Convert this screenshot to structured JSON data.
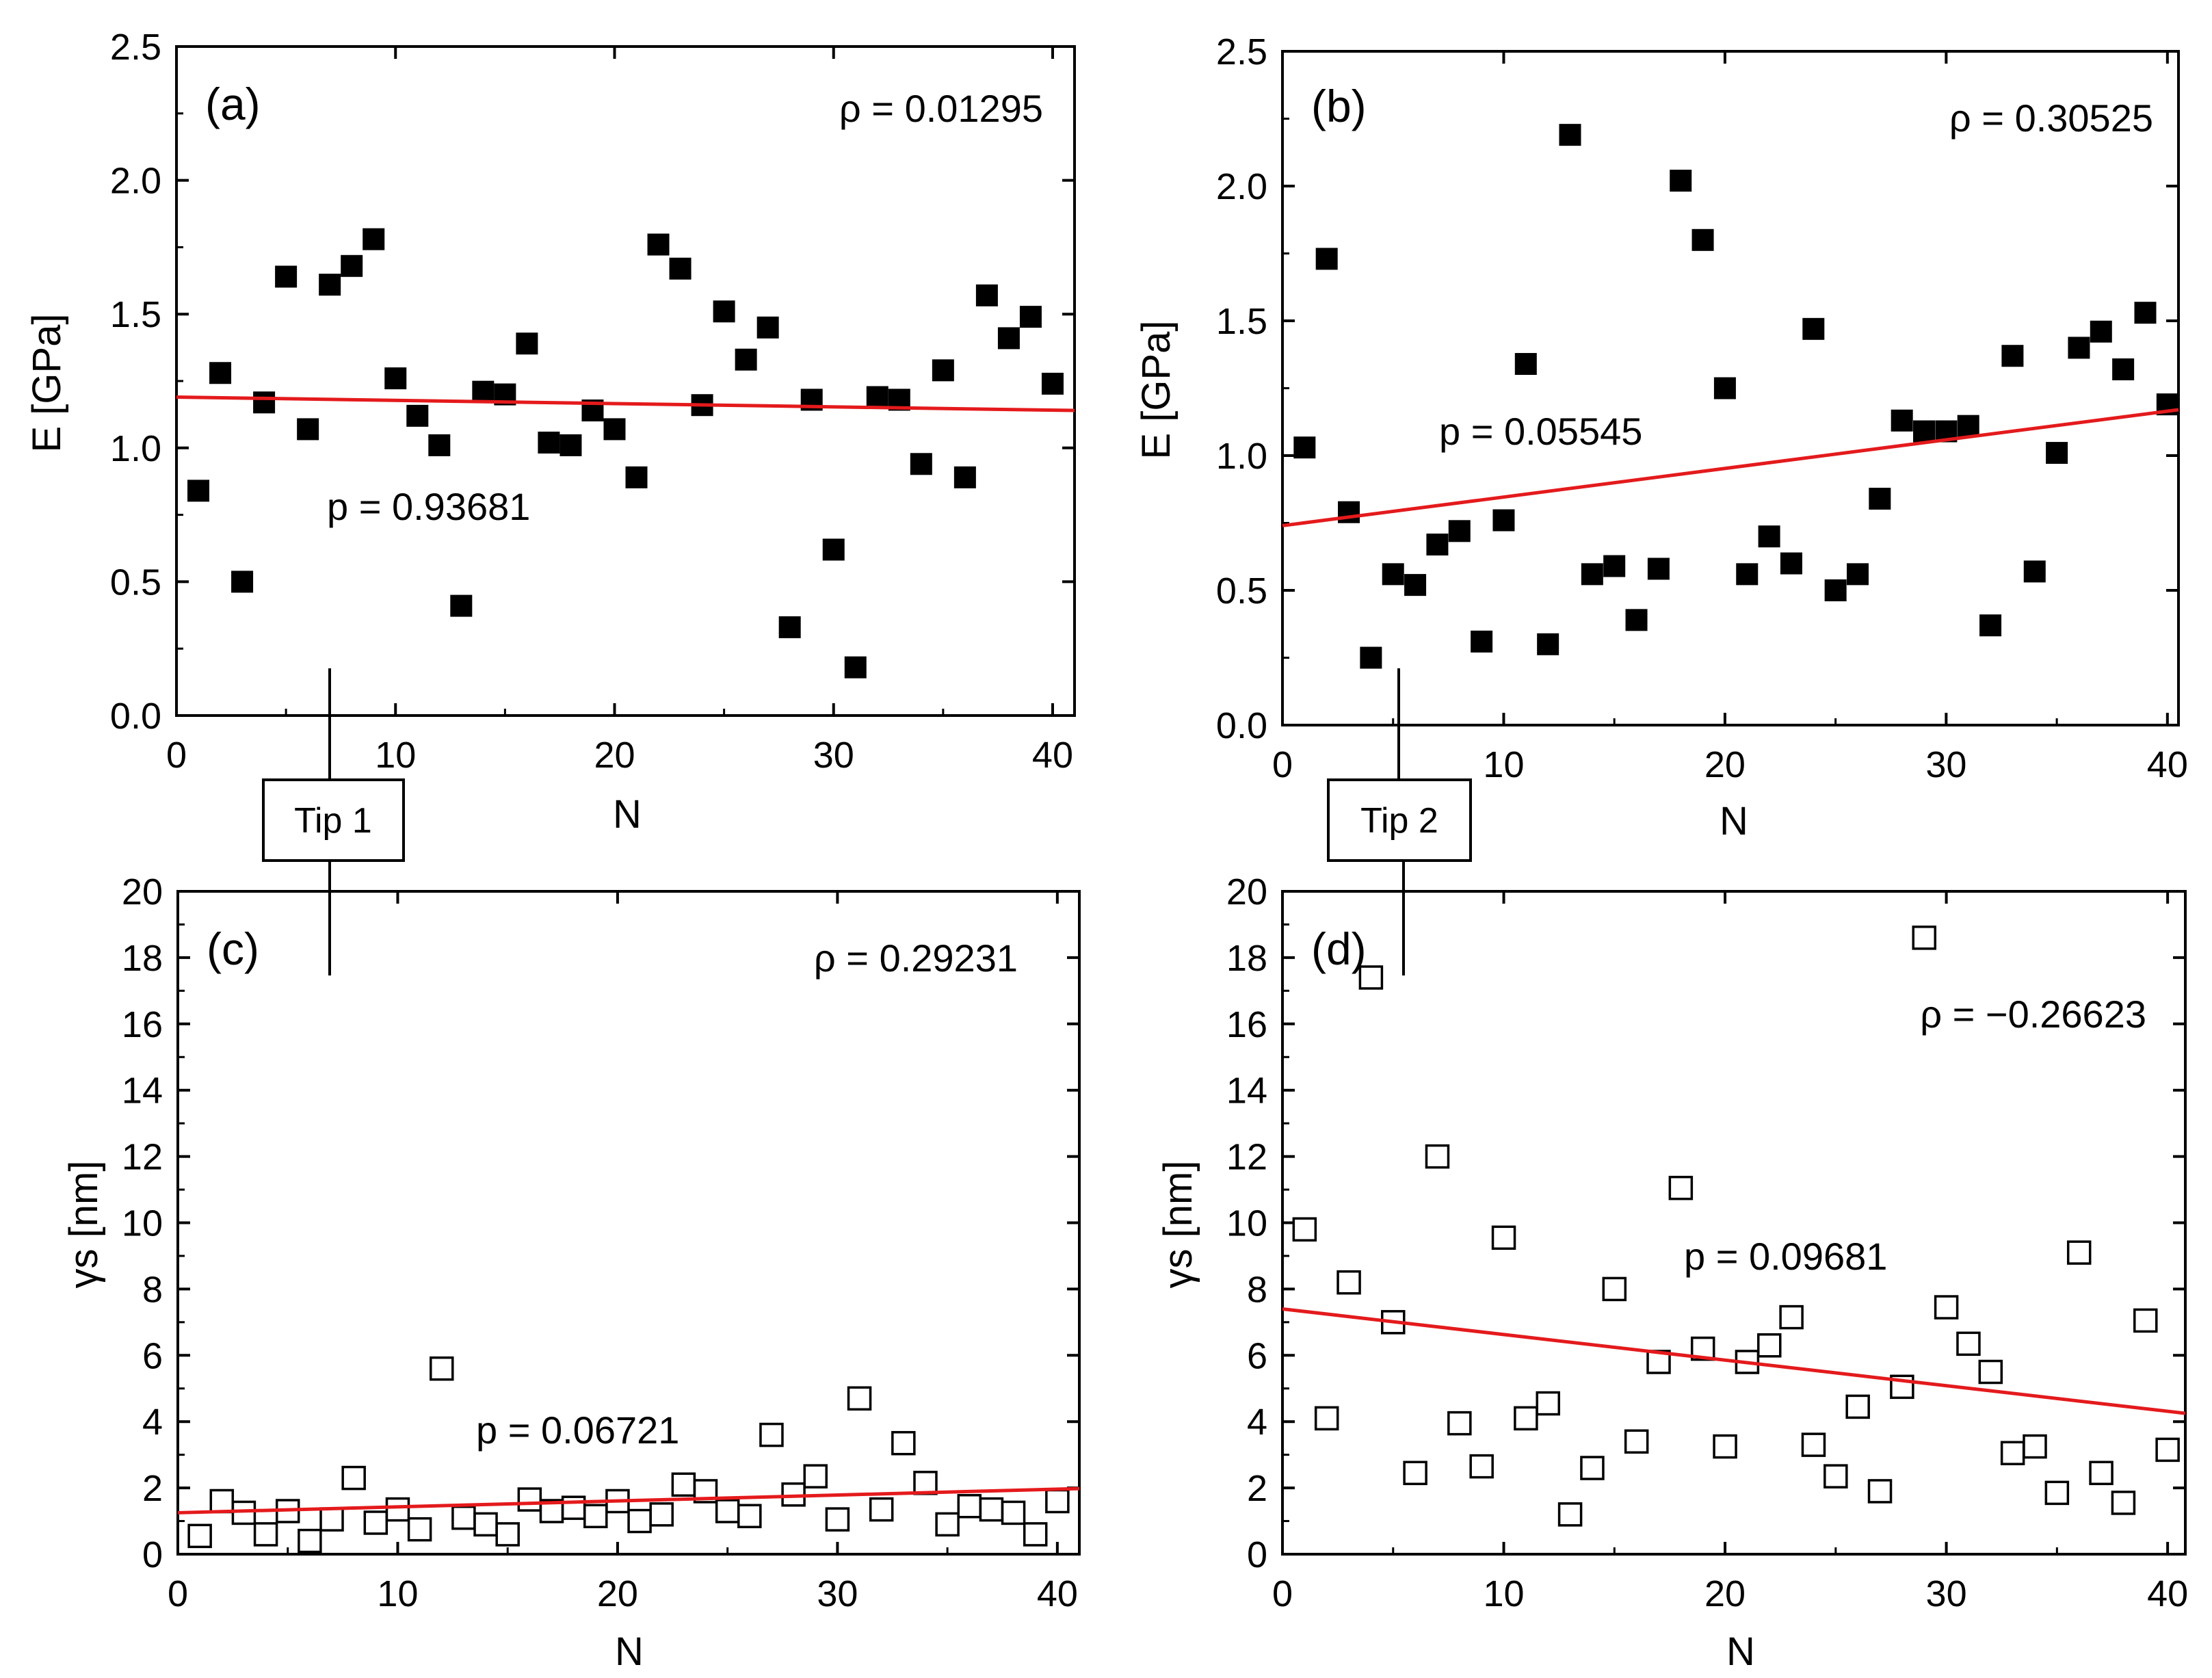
{
  "figure": {
    "tips": [
      {
        "label": "Tip 1"
      },
      {
        "label": "Tip 2"
      }
    ]
  },
  "chart_data": [
    {
      "id": "a",
      "panel_label": "(a)",
      "type": "scatter",
      "xlabel": "N",
      "ylabel": "E [GPa]",
      "xlim": [
        0,
        41
      ],
      "ylim": [
        0,
        2.5
      ],
      "xticks": [
        0,
        10,
        20,
        30,
        40
      ],
      "yticks": [
        0.0,
        0.5,
        1.0,
        1.5,
        2.0,
        2.5
      ],
      "ytick_decimals": 1,
      "marker": "filled-square",
      "rho_label": "ρ = 0.01295",
      "p_label": "p = 0.93681",
      "fit_line": {
        "x": [
          0,
          41
        ],
        "y": [
          1.19,
          1.14
        ]
      },
      "x": [
        1,
        2,
        3,
        4,
        5,
        6,
        7,
        8,
        9,
        10,
        11,
        12,
        13,
        14,
        15,
        16,
        17,
        18,
        19,
        20,
        21,
        22,
        23,
        24,
        25,
        26,
        27,
        28,
        29,
        30,
        31,
        32,
        33,
        34,
        35,
        36,
        37,
        38,
        39,
        40
      ],
      "y": [
        0.84,
        1.28,
        0.5,
        1.17,
        1.64,
        1.07,
        1.61,
        1.68,
        1.78,
        1.26,
        1.12,
        1.01,
        0.41,
        1.21,
        1.2,
        1.39,
        1.02,
        1.01,
        1.14,
        1.07,
        0.89,
        1.76,
        1.67,
        1.16,
        1.51,
        1.33,
        1.45,
        0.33,
        1.18,
        0.62,
        0.18,
        1.19,
        1.18,
        0.94,
        1.29,
        0.89,
        1.57,
        1.41,
        1.49,
        1.24
      ]
    },
    {
      "id": "b",
      "panel_label": "(b)",
      "type": "scatter",
      "xlabel": "N",
      "ylabel": "E [GPa]",
      "xlim": [
        0,
        40.5
      ],
      "ylim": [
        0,
        2.5
      ],
      "xticks": [
        0,
        10,
        20,
        30,
        40
      ],
      "yticks": [
        0.0,
        0.5,
        1.0,
        1.5,
        2.0,
        2.5
      ],
      "ytick_decimals": 1,
      "marker": "filled-square",
      "rho_label": "ρ = 0.30525",
      "p_label": "p = 0.05545",
      "fit_line": {
        "x": [
          0,
          40.5
        ],
        "y": [
          0.74,
          1.17
        ]
      },
      "x": [
        1,
        2,
        3,
        4,
        5,
        6,
        7,
        8,
        9,
        10,
        11,
        12,
        13,
        14,
        15,
        16,
        17,
        18,
        19,
        20,
        21,
        22,
        23,
        24,
        25,
        26,
        27,
        28,
        29,
        30,
        31,
        32,
        33,
        34,
        35,
        36,
        37,
        38,
        39,
        40
      ],
      "y": [
        1.03,
        1.73,
        0.79,
        0.25,
        0.56,
        0.52,
        0.67,
        0.72,
        0.31,
        0.76,
        1.34,
        0.3,
        2.19,
        0.56,
        0.59,
        0.39,
        0.58,
        2.02,
        1.8,
        1.25,
        0.56,
        0.7,
        0.6,
        1.47,
        0.5,
        0.56,
        0.84,
        1.13,
        1.09,
        1.09,
        1.11,
        0.37,
        1.37,
        0.57,
        1.01,
        1.4,
        1.46,
        1.32,
        1.53,
        1.19
      ]
    },
    {
      "id": "c",
      "panel_label": "(c)",
      "type": "scatter",
      "xlabel": "N",
      "ylabel": "γs [nm]",
      "xlim": [
        0,
        41
      ],
      "ylim": [
        0,
        20
      ],
      "xticks": [
        0,
        10,
        20,
        30,
        40
      ],
      "yticks": [
        0,
        2,
        4,
        6,
        8,
        10,
        12,
        14,
        16,
        18,
        20
      ],
      "ytick_decimals": 0,
      "marker": "open-square",
      "rho_label": "ρ = 0.29231",
      "p_label": "p = 0.06721",
      "fit_line": {
        "x": [
          0,
          41
        ],
        "y": [
          1.25,
          1.98
        ]
      },
      "x": [
        1,
        2,
        3,
        4,
        5,
        6,
        7,
        8,
        9,
        10,
        11,
        12,
        13,
        14,
        15,
        16,
        17,
        18,
        19,
        20,
        21,
        22,
        23,
        24,
        25,
        26,
        27,
        28,
        29,
        30,
        31,
        32,
        33,
        34,
        35,
        36,
        37,
        38,
        39,
        40
      ],
      "y": [
        0.55,
        1.6,
        1.25,
        0.6,
        1.3,
        0.4,
        1.05,
        2.3,
        0.95,
        1.35,
        0.75,
        5.6,
        1.1,
        0.9,
        0.6,
        1.65,
        1.3,
        1.4,
        1.15,
        1.6,
        1.0,
        1.2,
        2.1,
        1.9,
        1.3,
        1.15,
        3.6,
        1.8,
        2.35,
        1.05,
        4.7,
        1.35,
        3.35,
        2.15,
        0.9,
        1.45,
        1.35,
        1.25,
        0.6,
        1.6
      ]
    },
    {
      "id": "d",
      "panel_label": "(d)",
      "type": "scatter",
      "xlabel": "N",
      "ylabel": "γs [nm]",
      "xlim": [
        0,
        40.8
      ],
      "ylim": [
        0,
        20
      ],
      "xticks": [
        0,
        10,
        20,
        30,
        40
      ],
      "yticks": [
        0,
        2,
        4,
        6,
        8,
        10,
        12,
        14,
        16,
        18,
        20
      ],
      "ytick_decimals": 0,
      "marker": "open-square",
      "rho_label": "ρ = −0.26623",
      "p_label": "p = 0.09681",
      "fit_line": {
        "x": [
          0,
          40.8
        ],
        "y": [
          7.4,
          4.25
        ]
      },
      "x": [
        1,
        2,
        3,
        4,
        5,
        6,
        7,
        8,
        9,
        10,
        11,
        12,
        13,
        14,
        15,
        16,
        17,
        18,
        19,
        20,
        21,
        22,
        23,
        24,
        25,
        26,
        27,
        28,
        29,
        30,
        31,
        32,
        33,
        34,
        35,
        36,
        37,
        38,
        39,
        40
      ],
      "y": [
        9.8,
        4.1,
        8.2,
        17.4,
        7.0,
        2.45,
        12.0,
        3.95,
        2.65,
        9.55,
        4.1,
        4.55,
        1.2,
        2.6,
        8.0,
        3.4,
        5.8,
        11.05,
        6.2,
        3.25,
        5.8,
        6.3,
        7.15,
        3.3,
        2.35,
        4.45,
        1.9,
        5.05,
        18.6,
        7.45,
        6.35,
        5.5,
        3.05,
        3.25,
        1.85,
        9.1,
        2.45,
        1.55,
        7.05,
        3.15
      ]
    }
  ]
}
